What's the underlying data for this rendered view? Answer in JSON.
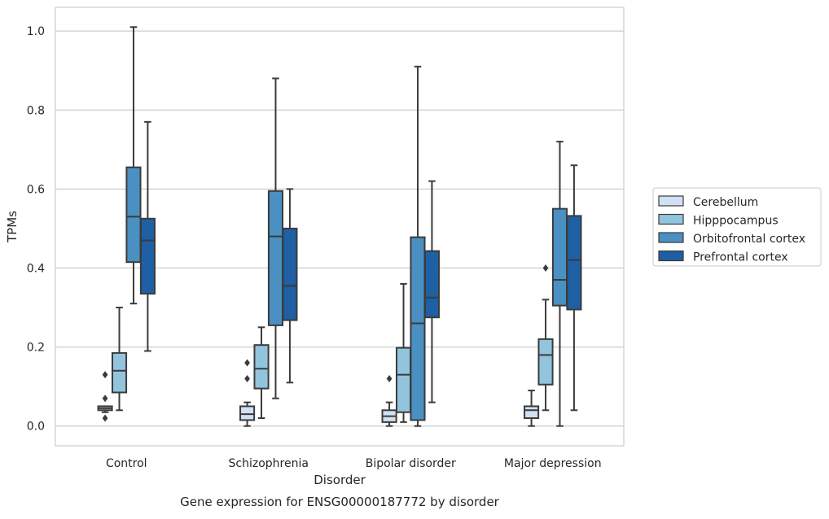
{
  "chart_data": {
    "type": "box",
    "xlabel": "Disorder",
    "ylabel": "TPMs",
    "caption": "Gene expression for ENSG00000187772 by disorder",
    "categories": [
      "Control",
      "Schizophrenia",
      "Bipolar disorder",
      "Major depression"
    ],
    "ylim": [
      -0.05,
      1.06
    ],
    "yticks": [
      0.0,
      0.2,
      0.4,
      0.6,
      0.8,
      1.0
    ],
    "ytick_labels": [
      "0.0",
      "0.2",
      "0.4",
      "0.6",
      "0.8",
      "1.0"
    ],
    "grid": "horizontal",
    "legend": "outside-right",
    "series": [
      {
        "name": "Cerebellum",
        "color": "#cfe1f2",
        "boxes": [
          {
            "whislo": 0.035,
            "q1": 0.04,
            "med": 0.045,
            "q3": 0.05,
            "whishi": 0.05,
            "fliers": [
              0.13,
              0.07,
              0.02
            ]
          },
          {
            "whislo": 0.0,
            "q1": 0.015,
            "med": 0.03,
            "q3": 0.05,
            "whishi": 0.06,
            "fliers": [
              0.16,
              0.12
            ]
          },
          {
            "whislo": 0.0,
            "q1": 0.01,
            "med": 0.025,
            "q3": 0.04,
            "whishi": 0.06,
            "fliers": [
              0.12
            ]
          },
          {
            "whislo": 0.0,
            "q1": 0.02,
            "med": 0.04,
            "q3": 0.05,
            "whishi": 0.09,
            "fliers": []
          }
        ]
      },
      {
        "name": "Hipppocampus",
        "color": "#93c4de",
        "boxes": [
          {
            "whislo": 0.04,
            "q1": 0.085,
            "med": 0.14,
            "q3": 0.185,
            "whishi": 0.3,
            "fliers": []
          },
          {
            "whislo": 0.02,
            "q1": 0.095,
            "med": 0.145,
            "q3": 0.205,
            "whishi": 0.25,
            "fliers": []
          },
          {
            "whislo": 0.01,
            "q1": 0.035,
            "med": 0.13,
            "q3": 0.198,
            "whishi": 0.36,
            "fliers": []
          },
          {
            "whislo": 0.04,
            "q1": 0.105,
            "med": 0.18,
            "q3": 0.22,
            "whishi": 0.32,
            "fliers": [
              0.4
            ]
          }
        ]
      },
      {
        "name": "Orbitofrontal cortex",
        "color": "#4a90c2",
        "boxes": [
          {
            "whislo": 0.31,
            "q1": 0.415,
            "med": 0.53,
            "q3": 0.655,
            "whishi": 1.01,
            "fliers": []
          },
          {
            "whislo": 0.07,
            "q1": 0.255,
            "med": 0.48,
            "q3": 0.595,
            "whishi": 0.88,
            "fliers": []
          },
          {
            "whislo": 0.0,
            "q1": 0.015,
            "med": 0.26,
            "q3": 0.478,
            "whishi": 0.91,
            "fliers": []
          },
          {
            "whislo": 0.0,
            "q1": 0.305,
            "med": 0.37,
            "q3": 0.55,
            "whishi": 0.72,
            "fliers": []
          }
        ]
      },
      {
        "name": "Prefrontal cortex",
        "color": "#1f5fa3",
        "boxes": [
          {
            "whislo": 0.19,
            "q1": 0.335,
            "med": 0.47,
            "q3": 0.525,
            "whishi": 0.77,
            "fliers": []
          },
          {
            "whislo": 0.11,
            "q1": 0.268,
            "med": 0.355,
            "q3": 0.5,
            "whishi": 0.6,
            "fliers": []
          },
          {
            "whislo": 0.06,
            "q1": 0.275,
            "med": 0.325,
            "q3": 0.443,
            "whishi": 0.62,
            "fliers": []
          },
          {
            "whislo": 0.04,
            "q1": 0.295,
            "med": 0.42,
            "q3": 0.532,
            "whishi": 0.66,
            "fliers": []
          }
        ]
      }
    ]
  }
}
